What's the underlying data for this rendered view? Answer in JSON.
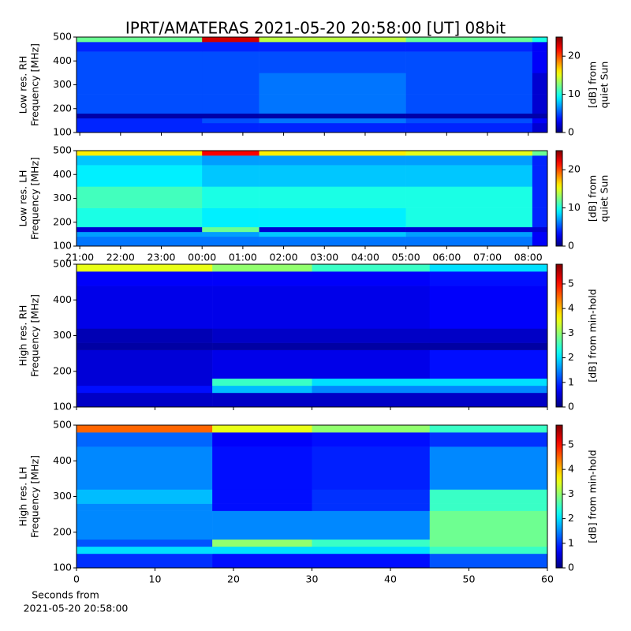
{
  "title": "IPRT/AMATERAS 2021-05-20 20:58:00 [UT]   08bit",
  "footnote": [
    "Seconds from",
    "2021-05-20 20:58:00"
  ],
  "chart_data": [
    {
      "type": "heatmap",
      "colormap": "jet",
      "ylabel": [
        "Low res. RH",
        "Frequency [MHz]"
      ],
      "xlim": [
        -0.08,
        11.47
      ],
      "xticks": [
        0,
        1,
        2,
        3,
        4,
        5,
        6,
        7,
        8,
        9,
        10,
        11
      ],
      "show_xtick_labels": false,
      "ylim": [
        100,
        500
      ],
      "yticks": [
        100,
        200,
        300,
        400,
        500
      ],
      "xbins": [
        -0.08,
        3,
        4.4,
        8,
        11.1,
        11.47
      ],
      "ybins": [
        100,
        140,
        160,
        180,
        260,
        350,
        440,
        480,
        500
      ],
      "z": [
        [
          4,
          4,
          4,
          4,
          2
        ],
        [
          4,
          5,
          6,
          5,
          3
        ],
        [
          1,
          1,
          1,
          1,
          1
        ],
        [
          5,
          5,
          6,
          5,
          2
        ],
        [
          5,
          5,
          6,
          5,
          2
        ],
        [
          5,
          5,
          5,
          5,
          3
        ],
        [
          4,
          4,
          4,
          4,
          3
        ],
        [
          12,
          23,
          14,
          12,
          10
        ]
      ],
      "clim": [
        0,
        25
      ],
      "cticks": [
        0,
        10,
        20
      ],
      "colorbar_label": [
        "[dB] from",
        "quiet Sun"
      ]
    },
    {
      "type": "heatmap",
      "colormap": "jet",
      "ylabel": [
        "Low res. LH",
        "Frequency [MHz]"
      ],
      "xlim": [
        -0.08,
        11.47
      ],
      "xticks": [
        {
          "value": 0,
          "label": "21:00"
        },
        {
          "value": 1,
          "label": "22:00"
        },
        {
          "value": 2,
          "label": "23:00"
        },
        {
          "value": 3,
          "label": "00:00"
        },
        {
          "value": 4,
          "label": "01:00"
        },
        {
          "value": 5,
          "label": "02:00"
        },
        {
          "value": 6,
          "label": "03:00"
        },
        {
          "value": 7,
          "label": "04:00"
        },
        {
          "value": 8,
          "label": "05:00"
        },
        {
          "value": 9,
          "label": "06:00"
        },
        {
          "value": 10,
          "label": "07:00"
        },
        {
          "value": 11,
          "label": "08:00"
        }
      ],
      "show_xtick_labels": true,
      "ylim": [
        100,
        500
      ],
      "yticks": [
        100,
        200,
        300,
        400,
        500
      ],
      "xbins": [
        -0.08,
        3,
        4.4,
        8,
        11.1,
        11.47
      ],
      "ybins": [
        100,
        140,
        160,
        180,
        260,
        350,
        440,
        480,
        500
      ],
      "z": [
        [
          6,
          6,
          6,
          6,
          3
        ],
        [
          7,
          7,
          8,
          7,
          3
        ],
        [
          2,
          12,
          2,
          2,
          2
        ],
        [
          10,
          9,
          9,
          10,
          4
        ],
        [
          11,
          10,
          10,
          10,
          4
        ],
        [
          9,
          8,
          8,
          8,
          4
        ],
        [
          8,
          7,
          7,
          7,
          4
        ],
        [
          16,
          22,
          16,
          15,
          12
        ]
      ],
      "clim": [
        0,
        25
      ],
      "cticks": [
        0,
        10,
        20
      ],
      "colorbar_label": [
        "[dB] from",
        "quiet Sun"
      ]
    },
    {
      "type": "heatmap",
      "colormap": "jet",
      "ylabel": [
        "High res. RH",
        "Frequency [MHz]"
      ],
      "xlim": [
        0,
        60
      ],
      "xticks": [
        0,
        10,
        20,
        30,
        40,
        50,
        60
      ],
      "show_xtick_labels": false,
      "ylim": [
        100,
        500
      ],
      "yticks": [
        100,
        200,
        300,
        400,
        500
      ],
      "xbins": [
        0,
        17.3,
        30,
        45,
        60
      ],
      "ybins": [
        100,
        140,
        160,
        180,
        260,
        280,
        320,
        440,
        480,
        500
      ],
      "z": [
        [
          0.4,
          0.4,
          0.4,
          0.4
        ],
        [
          0.8,
          1.8,
          1.5,
          1.5
        ],
        [
          0.5,
          2.5,
          2,
          2
        ],
        [
          0.5,
          0.6,
          0.6,
          0.8
        ],
        [
          0.2,
          0.2,
          0.2,
          0.2
        ],
        [
          0.3,
          0.4,
          0.4,
          0.4
        ],
        [
          0.6,
          0.6,
          0.6,
          0.7
        ],
        [
          0.7,
          0.7,
          0.7,
          0.8
        ],
        [
          3.5,
          3,
          2.5,
          2
        ]
      ],
      "clim": [
        0,
        5.8
      ],
      "cticks": [
        0,
        1,
        2,
        3,
        4,
        5
      ],
      "colorbar_label": [
        "[dB] from min-hold"
      ]
    },
    {
      "type": "heatmap",
      "colormap": "jet",
      "ylabel": [
        "High res. LH",
        "Frequency [MHz]"
      ],
      "xlim": [
        0,
        60
      ],
      "xticks": [
        0,
        10,
        20,
        30,
        40,
        50,
        60
      ],
      "show_xtick_labels": true,
      "ylim": [
        100,
        500
      ],
      "yticks": [
        100,
        200,
        300,
        400,
        500
      ],
      "xbins": [
        0,
        17.3,
        30,
        45,
        60
      ],
      "ybins": [
        100,
        140,
        160,
        180,
        260,
        280,
        320,
        440,
        480,
        500
      ],
      "z": [
        [
          1,
          0.8,
          0.8,
          1.2
        ],
        [
          2,
          2,
          2,
          2.5
        ],
        [
          1.2,
          3,
          2.5,
          2.8
        ],
        [
          1.5,
          1.5,
          1.5,
          2.8
        ],
        [
          1.5,
          0.8,
          1,
          2.5
        ],
        [
          1.8,
          0.8,
          1,
          2.5
        ],
        [
          1.5,
          0.8,
          0.9,
          1.5
        ],
        [
          1.3,
          0.7,
          0.8,
          1
        ],
        [
          4.5,
          3.5,
          3,
          2.5
        ]
      ],
      "clim": [
        0,
        5.8
      ],
      "cticks": [
        0,
        1,
        2,
        3,
        4,
        5
      ],
      "colorbar_label": [
        "[dB] from min-hold"
      ]
    }
  ]
}
